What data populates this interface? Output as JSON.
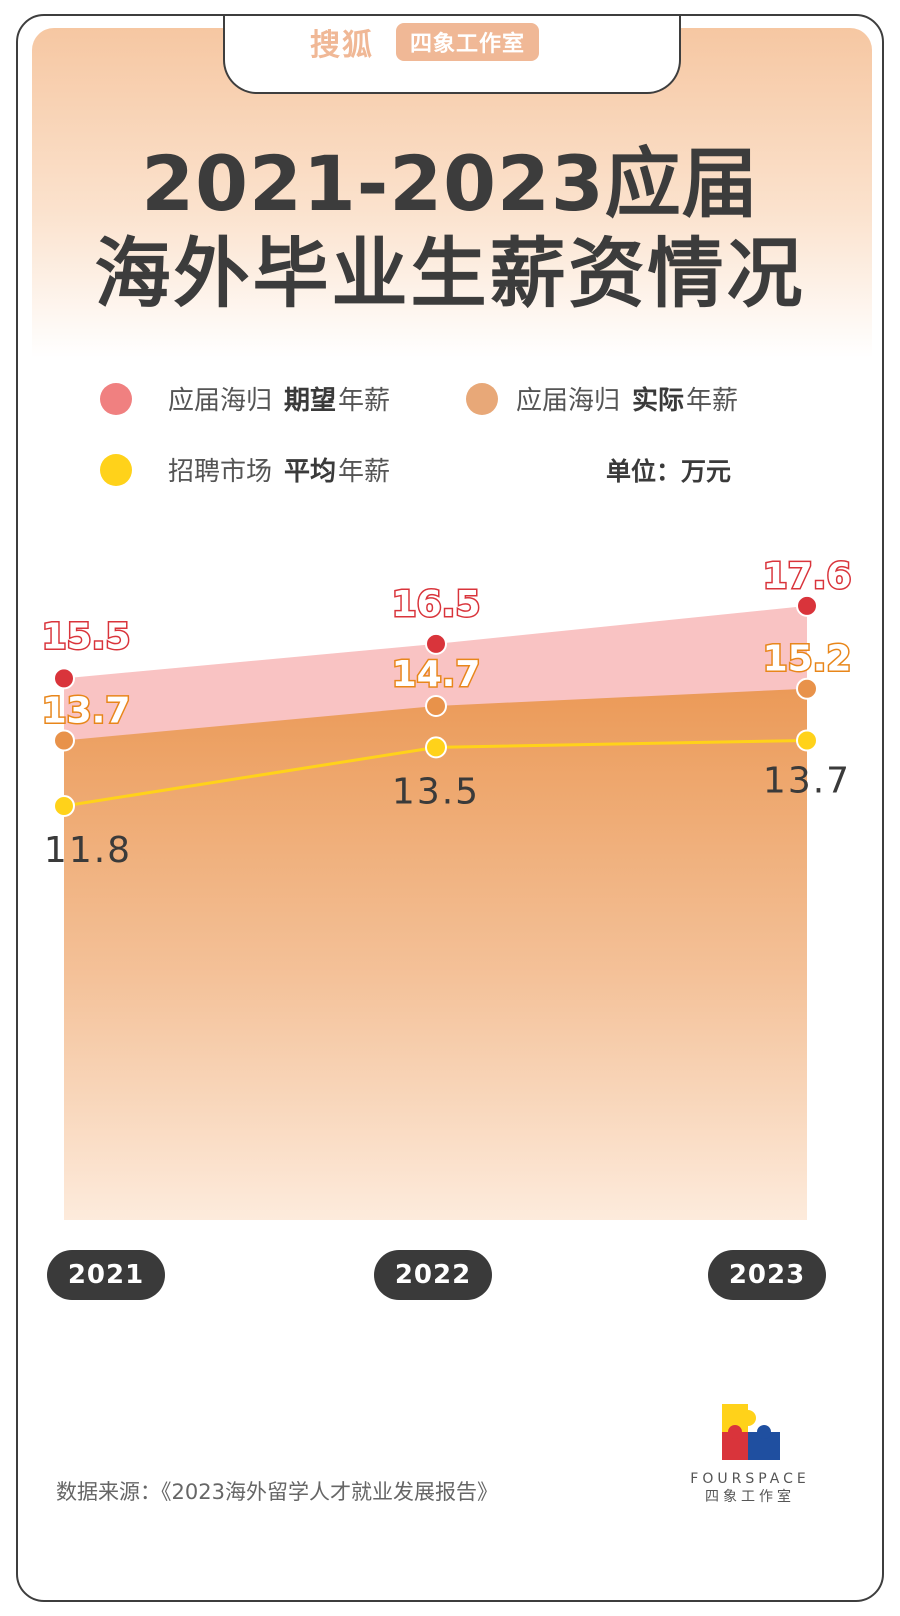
{
  "brand": {
    "name": "搜狐",
    "tag": "四象工作室"
  },
  "title": {
    "line1": "2021-2023应届",
    "line2": "海外毕业生薪资情况"
  },
  "legend": [
    {
      "prefix": "应届海归",
      "bold": "期望",
      "suffix": "年薪",
      "color": "#f08080"
    },
    {
      "prefix": "应届海归",
      "bold": "实际",
      "suffix": "年薪",
      "color": "#e8a878"
    },
    {
      "prefix": "招聘市场",
      "bold": "平均",
      "suffix": "年薪",
      "color": "#ffd21a"
    }
  ],
  "unit": "单位：万元",
  "chart_data": {
    "type": "area",
    "categories": [
      "2021",
      "2022",
      "2023"
    ],
    "series": [
      {
        "name": "应届海归期望年薪",
        "values": [
          15.5,
          16.5,
          17.6
        ],
        "color": "#d9343b",
        "fill": "#f9c3c3"
      },
      {
        "name": "应届海归实际年薪",
        "values": [
          13.7,
          14.7,
          15.2
        ],
        "color": "#e8924a",
        "fill": "#eb9e5e"
      },
      {
        "name": "招聘市场平均年薪",
        "values": [
          11.8,
          13.5,
          13.7
        ],
        "color": "#ffd21a"
      }
    ],
    "value_labels": {
      "expected": [
        "15.5",
        "16.5",
        "17.6"
      ],
      "actual": [
        "13.7",
        "14.7",
        "15.2"
      ],
      "average": [
        "11.8",
        "13.5",
        "13.7"
      ]
    }
  },
  "years": [
    "2021",
    "2022",
    "2023"
  ],
  "source": "数据来源：《2023海外留学人才就业发展报告》",
  "logo": {
    "line1": "FOURSPACE",
    "line2": "四象工作室"
  },
  "colors": {
    "dark": "#3a3a3a",
    "accent": "#f0b896"
  }
}
